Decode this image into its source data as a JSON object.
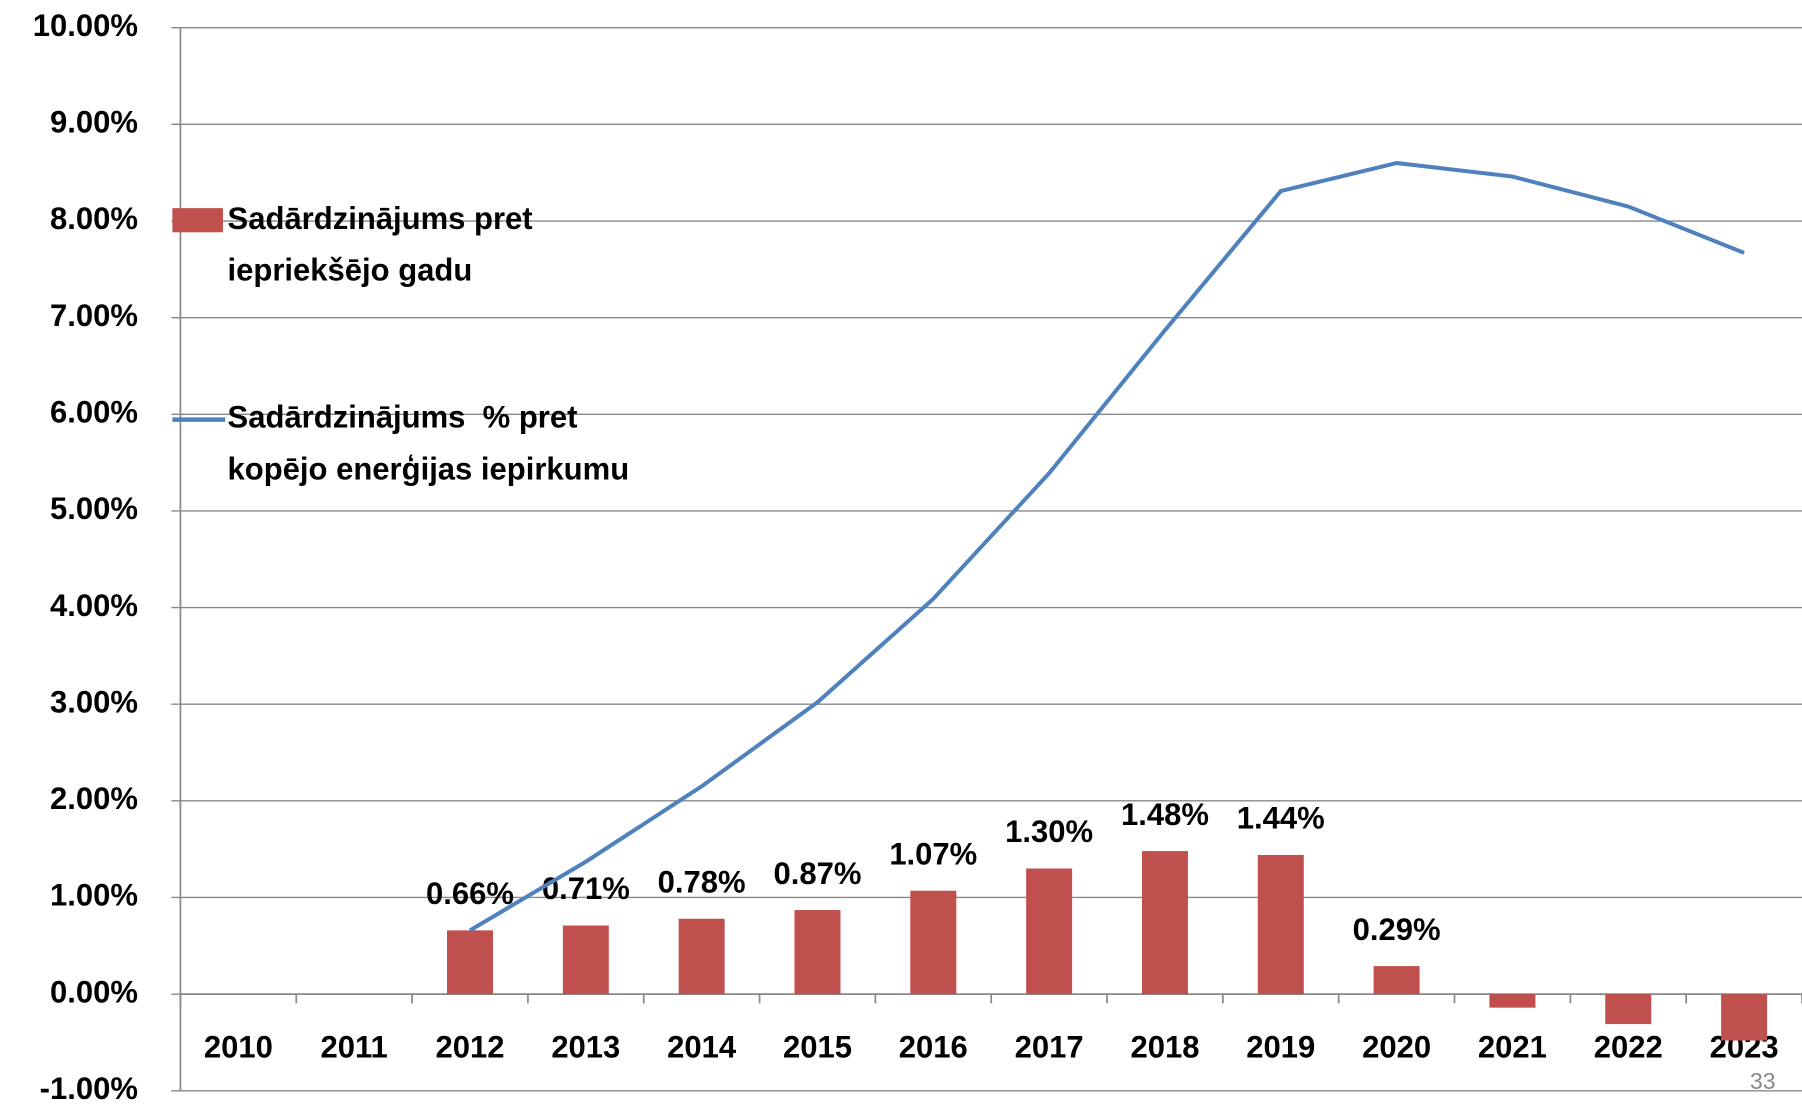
{
  "chart_data": {
    "type": "bar_line",
    "categories": [
      "2010",
      "2011",
      "2012",
      "2013",
      "2014",
      "2015",
      "2016",
      "2017",
      "2018",
      "2019",
      "2020",
      "2021",
      "2022",
      "2023"
    ],
    "series": [
      {
        "name": "Sadārdzinājums pret iepriekšējo gadu",
        "type": "bar",
        "color": "#c0504d",
        "values": [
          null,
          null,
          0.66,
          0.71,
          0.78,
          0.87,
          1.07,
          1.3,
          1.48,
          1.44,
          0.29,
          -0.14,
          -0.31,
          -0.48
        ],
        "value_labels": [
          null,
          null,
          "0.66%",
          "0.71%",
          "0.78%",
          "0.87%",
          "1.07%",
          "1.30%",
          "1.48%",
          "1.44%",
          "0.29%",
          null,
          null,
          null
        ]
      },
      {
        "name": "Sadārdzinājums  % pret kopējo enerģijas iepirkumu",
        "type": "line",
        "color": "#4f81bd",
        "values": [
          null,
          null,
          0.66,
          1.37,
          2.15,
          3.02,
          4.09,
          5.39,
          6.87,
          8.31,
          8.6,
          8.46,
          8.15,
          7.67
        ]
      }
    ],
    "ylim": [
      -1,
      10
    ],
    "yticks": [
      {
        "value": -1,
        "label": "-1.00%"
      },
      {
        "value": 0,
        "label": "0.00%"
      },
      {
        "value": 1,
        "label": "1.00%"
      },
      {
        "value": 2,
        "label": "2.00%"
      },
      {
        "value": 3,
        "label": "3.00%"
      },
      {
        "value": 4,
        "label": "4.00%"
      },
      {
        "value": 5,
        "label": "5.00%"
      },
      {
        "value": 6,
        "label": "6.00%"
      },
      {
        "value": 7,
        "label": "7.00%"
      },
      {
        "value": 8,
        "label": "8.00%"
      },
      {
        "value": 9,
        "label": "9.00%"
      },
      {
        "value": 10,
        "label": "10.00%"
      }
    ],
    "grid": true,
    "legend": "upper-left"
  },
  "page_number": "33"
}
